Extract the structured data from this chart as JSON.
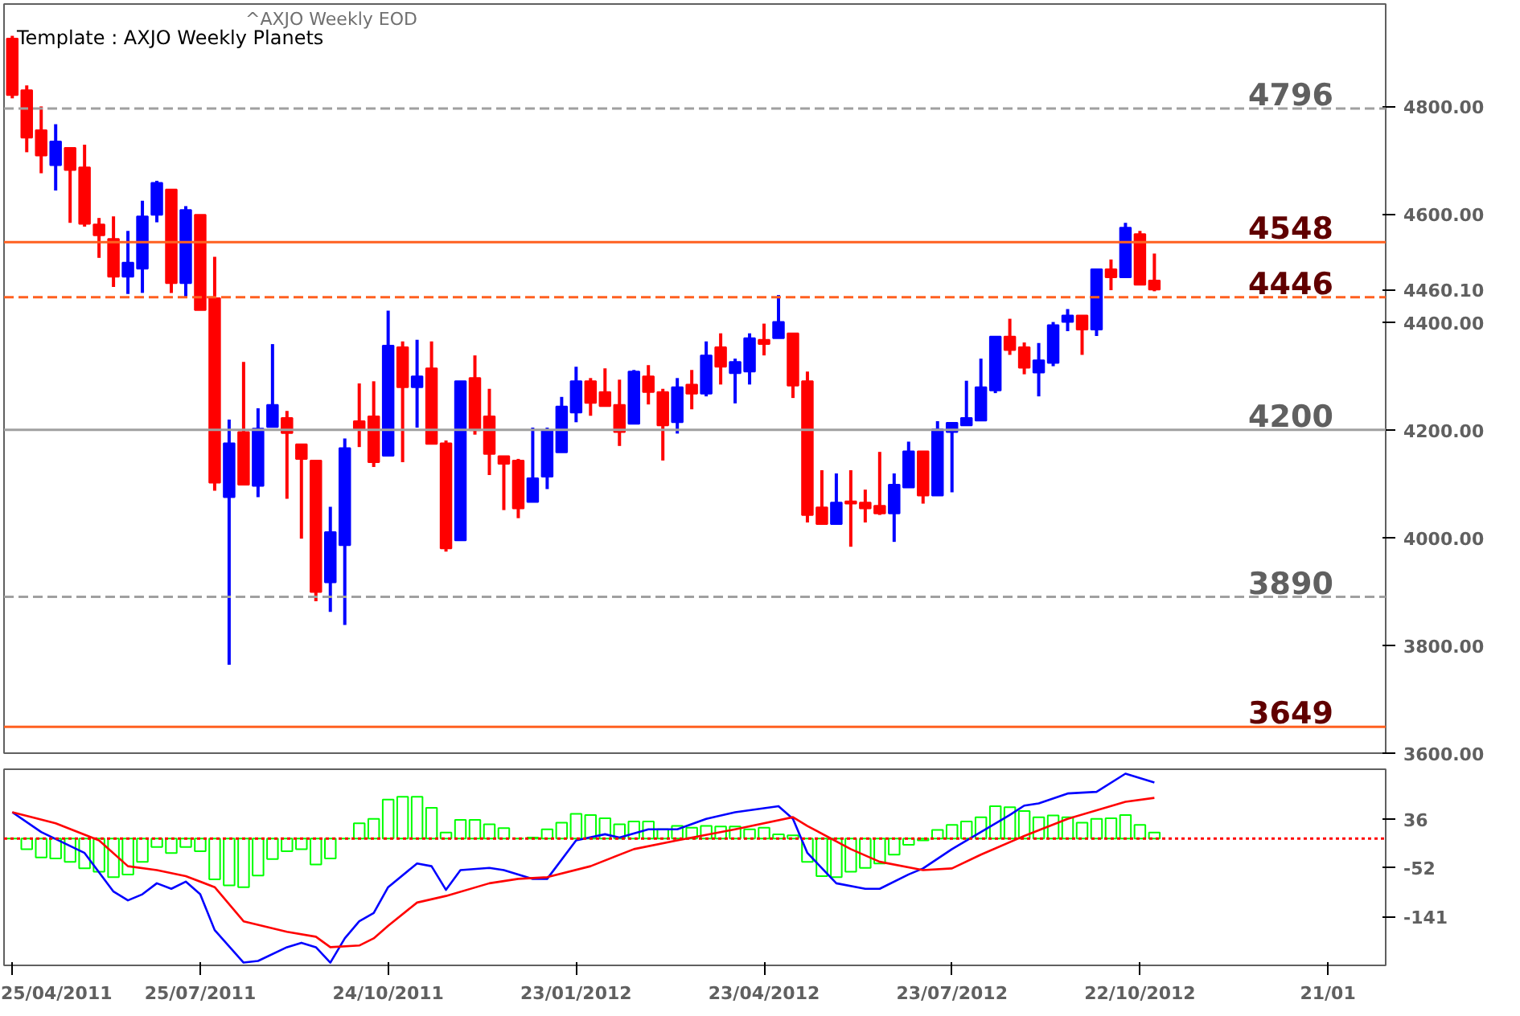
{
  "chart_data": [
    {
      "type": "candlestick",
      "title": "Template : AXJO Weekly Planets",
      "subtitle": "^AXJO Weekly EOD",
      "x": [
        "2011-04-25",
        "2011-05-02",
        "2011-05-09",
        "2011-05-16",
        "2011-05-23",
        "2011-05-30",
        "2011-06-06",
        "2011-06-13",
        "2011-06-20",
        "2011-06-27",
        "2011-07-04",
        "2011-07-11",
        "2011-07-18",
        "2011-07-25",
        "2011-08-01",
        "2011-08-08",
        "2011-08-15",
        "2011-08-22",
        "2011-08-29",
        "2011-09-05",
        "2011-09-12",
        "2011-09-19",
        "2011-09-26",
        "2011-10-03",
        "2011-10-10",
        "2011-10-17",
        "2011-10-24",
        "2011-10-31",
        "2011-11-07",
        "2011-11-14",
        "2011-11-21",
        "2011-11-28",
        "2011-12-05",
        "2011-12-12",
        "2011-12-19",
        "2011-12-26",
        "2012-01-02",
        "2012-01-09",
        "2012-01-16",
        "2012-01-23",
        "2012-01-30",
        "2012-02-06",
        "2012-02-13",
        "2012-02-20",
        "2012-02-27",
        "2012-03-05",
        "2012-03-12",
        "2012-03-19",
        "2012-03-26",
        "2012-04-02",
        "2012-04-09",
        "2012-04-16",
        "2012-04-23",
        "2012-04-30",
        "2012-05-07",
        "2012-05-14",
        "2012-05-21",
        "2012-05-28",
        "2012-06-04",
        "2012-06-11",
        "2012-06-18",
        "2012-06-25",
        "2012-07-02",
        "2012-07-09",
        "2012-07-16",
        "2012-07-23",
        "2012-07-30",
        "2012-08-06",
        "2012-08-13",
        "2012-08-20",
        "2012-08-27",
        "2012-09-03",
        "2012-09-10",
        "2012-09-17",
        "2012-09-24",
        "2012-10-01",
        "2012-10-08",
        "2012-10-15",
        "2012-10-22",
        "2012-10-29"
      ],
      "ohlc": [
        [
          4926,
          4931,
          4815,
          4821
        ],
        [
          4830,
          4839,
          4715,
          4742
        ],
        [
          4756,
          4800,
          4676,
          4709
        ],
        [
          4691,
          4767,
          4644,
          4735
        ],
        [
          4723,
          4723,
          4584,
          4682
        ],
        [
          4687,
          4729,
          4577,
          4582
        ],
        [
          4581,
          4593,
          4519,
          4561
        ],
        [
          4554,
          4596,
          4465,
          4484
        ],
        [
          4484,
          4569,
          4452,
          4510
        ],
        [
          4499,
          4625,
          4454,
          4596
        ],
        [
          4599,
          4662,
          4585,
          4658
        ],
        [
          4646,
          4646,
          4454,
          4472
        ],
        [
          4472,
          4615,
          4445,
          4608
        ],
        [
          4599,
          4599,
          4422,
          4422
        ],
        [
          4444,
          4521,
          4087,
          4102
        ],
        [
          4075,
          4219,
          3764,
          4175
        ],
        [
          4196,
          4326,
          4098,
          4098
        ],
        [
          4096,
          4240,
          4075,
          4202
        ],
        [
          4205,
          4359,
          4205,
          4246
        ],
        [
          4222,
          4235,
          4072,
          4194
        ],
        [
          4173,
          4173,
          3998,
          4146
        ],
        [
          4143,
          4143,
          3882,
          3899
        ],
        [
          3917,
          4057,
          3862,
          4010
        ],
        [
          3986,
          4184,
          3838,
          4166
        ],
        [
          4216,
          4286,
          4168,
          4202
        ],
        [
          4225,
          4290,
          4131,
          4140
        ],
        [
          4152,
          4421,
          4152,
          4356
        ],
        [
          4353,
          4364,
          4140,
          4279
        ],
        [
          4279,
          4367,
          4204,
          4299
        ],
        [
          4314,
          4364,
          4174,
          4174
        ],
        [
          4175,
          4180,
          3974,
          3980
        ],
        [
          3995,
          4290,
          3995,
          4290
        ],
        [
          4296,
          4338,
          4191,
          4199
        ],
        [
          4225,
          4276,
          4116,
          4155
        ],
        [
          4151,
          4151,
          4051,
          4137
        ],
        [
          4143,
          4146,
          4036,
          4054
        ],
        [
          4066,
          4204,
          4066,
          4110
        ],
        [
          4113,
          4204,
          4090,
          4199
        ],
        [
          4158,
          4261,
          4158,
          4243
        ],
        [
          4232,
          4317,
          4214,
          4290
        ],
        [
          4290,
          4296,
          4226,
          4250
        ],
        [
          4270,
          4314,
          4244,
          4244
        ],
        [
          4246,
          4293,
          4170,
          4196
        ],
        [
          4211,
          4311,
          4211,
          4308
        ],
        [
          4299,
          4320,
          4247,
          4270
        ],
        [
          4270,
          4276,
          4143,
          4208
        ],
        [
          4214,
          4296,
          4193,
          4279
        ],
        [
          4284,
          4311,
          4238,
          4267
        ],
        [
          4267,
          4364,
          4262,
          4338
        ],
        [
          4353,
          4379,
          4284,
          4317
        ],
        [
          4305,
          4332,
          4249,
          4326
        ],
        [
          4308,
          4379,
          4284,
          4370
        ],
        [
          4367,
          4397,
          4338,
          4359
        ],
        [
          4370,
          4450,
          4370,
          4400
        ],
        [
          4379,
          4379,
          4259,
          4282
        ],
        [
          4290,
          4308,
          4028,
          4042
        ],
        [
          4056,
          4125,
          4025,
          4025
        ],
        [
          4025,
          4119,
          4025,
          4065
        ],
        [
          4067,
          4125,
          3983,
          4063
        ],
        [
          4065,
          4089,
          4028,
          4054
        ],
        [
          4059,
          4159,
          4042,
          4045
        ],
        [
          4045,
          4119,
          3992,
          4098
        ],
        [
          4093,
          4178,
          4093,
          4160
        ],
        [
          4160,
          4160,
          4063,
          4078
        ],
        [
          4078,
          4216,
          4078,
          4201
        ],
        [
          4196,
          4213,
          4084,
          4213
        ],
        [
          4208,
          4291,
          4208,
          4222
        ],
        [
          4217,
          4332,
          4217,
          4279
        ],
        [
          4273,
          4373,
          4268,
          4373
        ],
        [
          4373,
          4406,
          4339,
          4348
        ],
        [
          4353,
          4362,
          4303,
          4315
        ],
        [
          4306,
          4361,
          4262,
          4329
        ],
        [
          4324,
          4400,
          4318,
          4394
        ],
        [
          4400,
          4424,
          4383,
          4412
        ],
        [
          4412,
          4412,
          4339,
          4386
        ],
        [
          4386,
          4498,
          4374,
          4498
        ],
        [
          4498,
          4516,
          4459,
          4483
        ],
        [
          4483,
          4584,
          4483,
          4575
        ],
        [
          4563,
          4569,
          4469,
          4469
        ],
        [
          4477,
          4527,
          4457,
          4460
        ]
      ],
      "colors": [
        "#ff0000",
        "#ff0000",
        "#ff0000",
        "#0000ff",
        "#ff0000",
        "#ff0000",
        "#ff0000",
        "#ff0000",
        "#0000ff",
        "#0000ff",
        "#0000ff",
        "#ff0000",
        "#0000ff",
        "#ff0000",
        "#ff0000",
        "#0000ff",
        "#ff0000",
        "#0000ff",
        "#0000ff",
        "#ff0000",
        "#ff0000",
        "#ff0000",
        "#0000ff",
        "#0000ff",
        "#ff0000",
        "#ff0000",
        "#0000ff",
        "#ff0000",
        "#0000ff",
        "#ff0000",
        "#ff0000",
        "#0000ff",
        "#ff0000",
        "#ff0000",
        "#ff0000",
        "#ff0000",
        "#0000ff",
        "#0000ff",
        "#0000ff",
        "#0000ff",
        "#ff0000",
        "#ff0000",
        "#ff0000",
        "#0000ff",
        "#ff0000",
        "#ff0000",
        "#0000ff",
        "#ff0000",
        "#0000ff",
        "#ff0000",
        "#0000ff",
        "#0000ff",
        "#ff0000",
        "#0000ff",
        "#ff0000",
        "#ff0000",
        "#ff0000",
        "#0000ff",
        "#ff0000",
        "#ff0000",
        "#ff0000",
        "#0000ff",
        "#0000ff",
        "#ff0000",
        "#0000ff",
        "#0000ff",
        "#0000ff",
        "#0000ff",
        "#0000ff",
        "#ff0000",
        "#ff0000",
        "#0000ff",
        "#0000ff",
        "#0000ff",
        "#ff0000",
        "#0000ff",
        "#ff0000",
        "#0000ff",
        "#ff0000",
        "#ff0000"
      ],
      "xlim": [
        "2011-04-21",
        "2013-02-18"
      ],
      "ylim": [
        3600,
        4990
      ],
      "yticks": [
        {
          "value": 3600,
          "label": "3600.00"
        },
        {
          "value": 3800,
          "label": "3800.00"
        },
        {
          "value": 4000,
          "label": "4000.00"
        },
        {
          "value": 4200,
          "label": "4200.00"
        },
        {
          "value": 4400,
          "label": "4400.00"
        },
        {
          "value": 4460.1,
          "label": "4460.10"
        },
        {
          "value": 4600,
          "label": "4600.00"
        },
        {
          "value": 4800,
          "label": "4800.00"
        }
      ],
      "ref_lines": [
        {
          "axis": "y",
          "value": 4796,
          "label": "4796",
          "color": "#a0a0a0",
          "line_style": "dashed"
        },
        {
          "axis": "y",
          "value": 4548,
          "label": "4548",
          "color": "#ff6020",
          "line_style": "solid"
        },
        {
          "axis": "y",
          "value": 4446,
          "label": "4446",
          "color": "#ff6020",
          "line_style": "dashed"
        },
        {
          "axis": "y",
          "value": 4200,
          "label": "4200",
          "color": "#a0a0a0",
          "line_style": "solid"
        },
        {
          "axis": "y",
          "value": 3890,
          "label": "3890",
          "color": "#a0a0a0",
          "line_style": "dashed"
        },
        {
          "axis": "y",
          "value": 3649,
          "label": "3649",
          "color": "#ff6020",
          "line_style": "solid"
        }
      ],
      "tick_labels": "y"
    },
    {
      "type": "bar",
      "x": [
        "2011-04-25",
        "2011-05-02",
        "2011-05-09",
        "2011-05-16",
        "2011-05-23",
        "2011-05-30",
        "2011-06-06",
        "2011-06-13",
        "2011-06-20",
        "2011-06-27",
        "2011-07-04",
        "2011-07-11",
        "2011-07-18",
        "2011-07-25",
        "2011-08-01",
        "2011-08-08",
        "2011-08-15",
        "2011-08-22",
        "2011-08-29",
        "2011-09-05",
        "2011-09-12",
        "2011-09-19",
        "2011-09-26",
        "2011-10-03",
        "2011-10-10",
        "2011-10-17",
        "2011-10-24",
        "2011-10-31",
        "2011-11-07",
        "2011-11-14",
        "2011-11-21",
        "2011-11-28",
        "2011-12-05",
        "2011-12-12",
        "2011-12-19",
        "2011-12-26",
        "2012-01-02",
        "2012-01-09",
        "2012-01-16",
        "2012-01-23",
        "2012-01-30",
        "2012-02-06",
        "2012-02-13",
        "2012-02-20",
        "2012-02-27",
        "2012-03-05",
        "2012-03-12",
        "2012-03-19",
        "2012-03-26",
        "2012-04-02",
        "2012-04-09",
        "2012-04-16",
        "2012-04-23",
        "2012-04-30",
        "2012-05-07",
        "2012-05-14",
        "2012-05-21",
        "2012-05-28",
        "2012-06-04",
        "2012-06-11",
        "2012-06-18",
        "2012-06-25",
        "2012-07-02",
        "2012-07-09",
        "2012-07-16",
        "2012-07-23",
        "2012-07-30",
        "2012-08-06",
        "2012-08-13",
        "2012-08-20",
        "2012-08-27",
        "2012-09-03",
        "2012-09-10",
        "2012-09-17",
        "2012-09-24",
        "2012-10-01",
        "2012-10-08",
        "2012-10-15",
        "2012-10-22",
        "2012-10-29"
      ],
      "series": [
        {
          "type": "bar",
          "color": "#00ff00",
          "values": [
            0,
            -19,
            -34,
            -36,
            -42,
            -54,
            -60,
            -70,
            -65,
            -42,
            -15,
            -26,
            -15,
            -23,
            -74,
            -85,
            -88,
            -67,
            -37,
            -23,
            -19,
            -47,
            -36,
            0,
            28,
            36,
            71,
            76,
            76,
            56,
            11,
            34,
            34,
            26,
            19,
            0,
            2,
            17,
            29,
            45,
            43,
            37,
            26,
            31,
            31,
            17,
            23,
            20,
            23,
            22,
            22,
            17,
            20,
            8,
            6,
            -42,
            -68,
            -70,
            -60,
            -53,
            -45,
            -29,
            -11,
            -3,
            16,
            25,
            31,
            39,
            59,
            57,
            50,
            39,
            42,
            39,
            29,
            36,
            37,
            43,
            25,
            11
          ]
        },
        {
          "type": "line",
          "color": "#0000ff",
          "x": [
            "2011-04-25",
            "2011-05-09",
            "2011-05-30",
            "2011-06-13",
            "2011-06-20",
            "2011-06-27",
            "2011-07-04",
            "2011-07-11",
            "2011-07-18",
            "2011-07-25",
            "2011-08-01",
            "2011-08-15",
            "2011-08-22",
            "2011-09-05",
            "2011-09-12",
            "2011-09-19",
            "2011-09-26",
            "2011-10-03",
            "2011-10-10",
            "2011-10-17",
            "2011-10-24",
            "2011-11-07",
            "2011-11-14",
            "2011-11-21",
            "2011-11-28",
            "2011-12-12",
            "2011-12-19",
            "2012-01-02",
            "2012-01-09",
            "2012-01-23",
            "2012-02-06",
            "2012-02-13",
            "2012-02-27",
            "2012-03-12",
            "2012-03-26",
            "2012-04-09",
            "2012-04-30",
            "2012-05-07",
            "2012-05-14",
            "2012-05-28",
            "2012-06-11",
            "2012-06-18",
            "2012-07-02",
            "2012-07-09",
            "2012-07-23",
            "2012-08-06",
            "2012-08-20",
            "2012-08-27",
            "2012-09-03",
            "2012-09-17",
            "2012-10-01",
            "2012-10-15",
            "2012-10-29"
          ],
          "values": [
            48,
            12,
            -26,
            -96,
            -112,
            -101,
            -81,
            -91,
            -78,
            -101,
            -166,
            -225,
            -222,
            -197,
            -189,
            -197,
            -225,
            -181,
            -150,
            -135,
            -88,
            -45,
            -50,
            -93,
            -57,
            -53,
            -57,
            -73,
            -73,
            -3,
            8,
            2,
            17,
            17,
            36,
            48,
            59,
            36,
            -26,
            -81,
            -91,
            -91,
            -65,
            -54,
            -19,
            12,
            43,
            60,
            64,
            82,
            85,
            118,
            102
          ]
        },
        {
          "type": "line",
          "color": "#ff0000",
          "x": [
            "2011-04-25",
            "2011-05-16",
            "2011-06-06",
            "2011-06-20",
            "2011-07-04",
            "2011-07-18",
            "2011-08-01",
            "2011-08-15",
            "2011-09-05",
            "2011-09-19",
            "2011-09-26",
            "2011-10-10",
            "2011-10-17",
            "2011-10-24",
            "2011-11-07",
            "2011-11-21",
            "2011-12-12",
            "2011-12-26",
            "2012-01-09",
            "2012-01-30",
            "2012-02-20",
            "2012-03-12",
            "2012-04-09",
            "2012-05-07",
            "2012-05-14",
            "2012-06-04",
            "2012-06-18",
            "2012-07-09",
            "2012-07-23",
            "2012-08-06",
            "2012-08-27",
            "2012-09-17",
            "2012-10-15",
            "2012-10-29"
          ],
          "values": [
            48,
            28,
            -3,
            -50,
            -57,
            -68,
            -88,
            -150,
            -169,
            -178,
            -197,
            -194,
            -181,
            -158,
            -116,
            -104,
            -81,
            -73,
            -70,
            -50,
            -19,
            -3,
            17,
            39,
            23,
            -19,
            -42,
            -57,
            -54,
            -29,
            5,
            36,
            67,
            74
          ]
        }
      ],
      "xlim": [
        "2011-04-21",
        "2013-02-18"
      ],
      "xticks": [
        {
          "value": "2011-04-25",
          "label": "25/04/2011"
        },
        {
          "value": "2011-07-25",
          "label": "25/07/2011"
        },
        {
          "value": "2011-10-24",
          "label": "24/10/2011"
        },
        {
          "value": "2012-01-23",
          "label": "23/01/2012"
        },
        {
          "value": "2012-04-23",
          "label": "23/04/2012"
        },
        {
          "value": "2012-07-23",
          "label": "23/07/2012"
        },
        {
          "value": "2012-10-22",
          "label": "22/10/2012"
        },
        {
          "value": "2013-01-21",
          "label": "21/01"
        }
      ],
      "ylim": [
        -230,
        126
      ],
      "yticks": [
        36,
        -52,
        -141
      ],
      "ref_lines": [
        {
          "axis": "y",
          "value": 0,
          "color": "#ff0000",
          "line_style": "dotted"
        }
      ]
    }
  ]
}
